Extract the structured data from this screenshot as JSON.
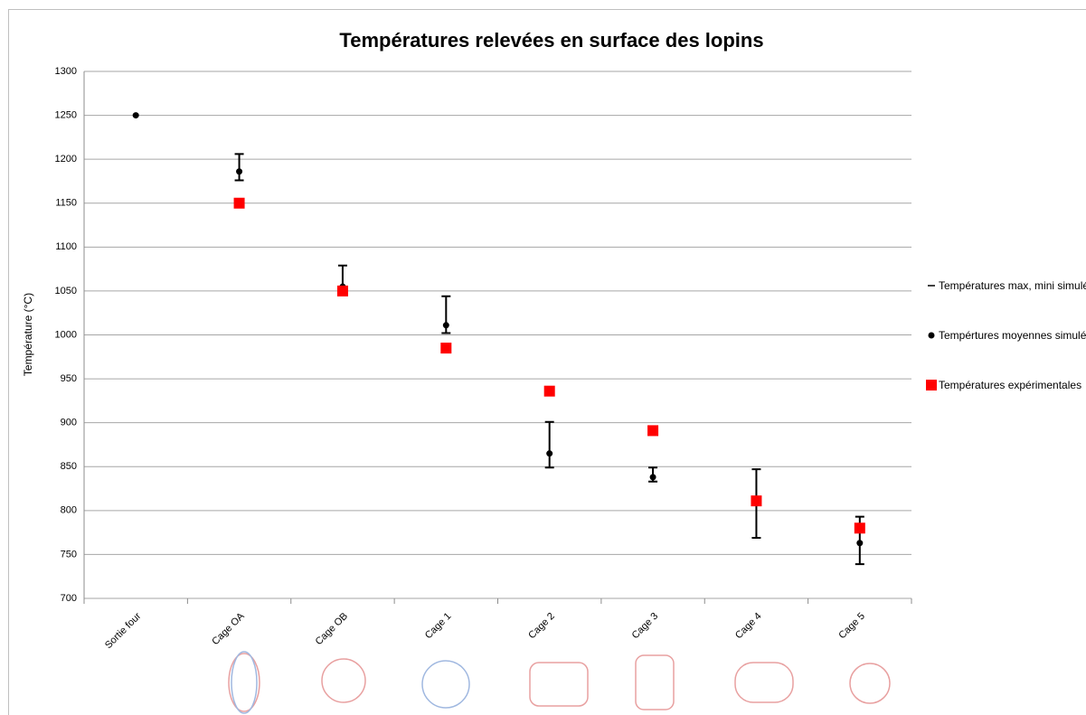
{
  "chart_data": {
    "type": "errorbar",
    "title": "Températures relevées en surface des lopins",
    "y_label": "Température (°C)",
    "categories": [
      "Sortie four",
      "Cage OA",
      "Cage OB",
      "Cage 1",
      "Cage 2",
      "Cage 3",
      "Cage 4",
      "Cage 5"
    ],
    "ylim": [
      700,
      1300
    ],
    "yticks": [
      700,
      750,
      800,
      850,
      900,
      950,
      1000,
      1050,
      1100,
      1150,
      1200,
      1250,
      1300
    ],
    "grid": true,
    "legend": "right",
    "series": [
      {
        "name": "Températures max, mini simulées",
        "color": "#000000",
        "kind": "range",
        "max": [
          null,
          1206,
          1079,
          1044,
          901,
          849,
          847,
          793
        ],
        "min": [
          null,
          1176,
          1051,
          1002,
          849,
          833,
          769,
          739
        ]
      },
      {
        "name": "Tempértures moyennes simulées",
        "color": "#000000",
        "kind": "dot",
        "values": [
          1250,
          1186,
          1055,
          1011,
          865,
          838,
          811,
          763
        ]
      },
      {
        "name": "Températures expérimentales",
        "color": "#ff0000",
        "kind": "square",
        "values": [
          null,
          1150,
          1050,
          985,
          936,
          891,
          811,
          780
        ]
      }
    ]
  }
}
